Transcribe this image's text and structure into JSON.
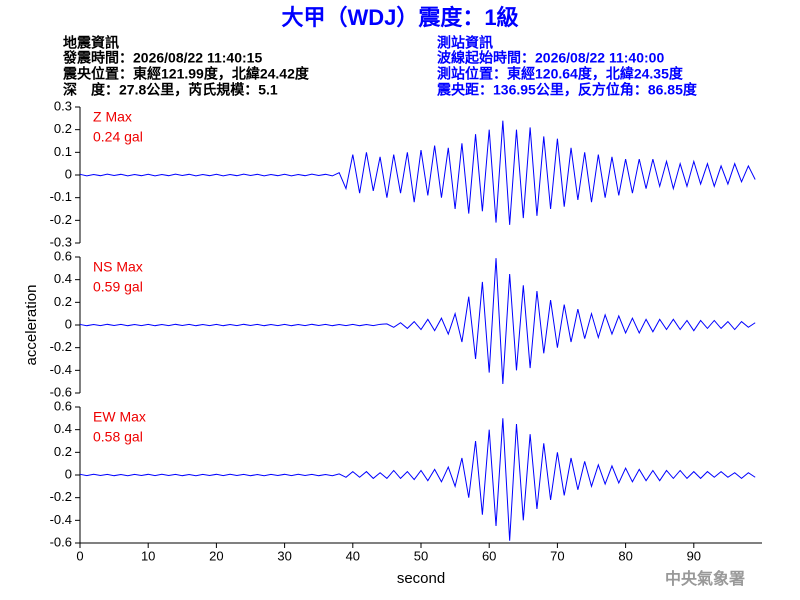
{
  "header": {
    "title": "大甲（WDJ）震度：1級",
    "info_left": [
      "地震資訊",
      "發震時間：2026/08/22 11:40:15",
      "震央位置：東經121.99度，北緯24.42度",
      "深　度：27.8公里，芮氏規模：5.1"
    ],
    "info_right": [
      "測站資訊",
      "波線起始時間：2026/08/22 11:40:00",
      "測站位置：東經120.64度，北緯24.35度",
      "震央距：136.95公里，反方位角：86.85度"
    ]
  },
  "footer": "中央氣象署",
  "chart_data": [
    {
      "type": "line",
      "title": "Z Max",
      "subtitle": "0.24 gal",
      "color": "#0000ff",
      "xlim": [
        0,
        100
      ],
      "ylim": [
        -0.3,
        0.3
      ],
      "yticks": [
        -0.3,
        -0.2,
        -0.1,
        0,
        0.1,
        0.2,
        0.3
      ],
      "x": [
        0,
        1,
        2,
        3,
        4,
        5,
        6,
        7,
        8,
        9,
        10,
        11,
        12,
        13,
        14,
        15,
        16,
        17,
        18,
        19,
        20,
        21,
        22,
        23,
        24,
        25,
        26,
        27,
        28,
        29,
        30,
        31,
        32,
        33,
        34,
        35,
        36,
        37,
        38,
        39,
        40,
        41,
        42,
        43,
        44,
        45,
        46,
        47,
        48,
        49,
        50,
        51,
        52,
        53,
        54,
        55,
        56,
        57,
        58,
        59,
        60,
        61,
        62,
        63,
        64,
        65,
        66,
        67,
        68,
        69,
        70,
        71,
        72,
        73,
        74,
        75,
        76,
        77,
        78,
        79,
        80,
        81,
        82,
        83,
        84,
        85,
        86,
        87,
        88,
        89,
        90,
        91,
        92,
        93,
        94,
        95,
        96,
        97,
        98,
        99
      ],
      "values": [
        0.003,
        -0.004,
        0.002,
        -0.003,
        0.004,
        -0.002,
        0.003,
        -0.004,
        0.002,
        -0.003,
        0.003,
        -0.004,
        0.002,
        -0.003,
        0.004,
        -0.002,
        0.003,
        -0.004,
        0.002,
        -0.003,
        0.003,
        -0.004,
        0.002,
        -0.003,
        0.004,
        -0.002,
        0.003,
        -0.004,
        0.002,
        -0.003,
        0.003,
        -0.004,
        0.002,
        -0.003,
        0.004,
        -0.002,
        0.003,
        -0.004,
        0.01,
        -0.06,
        0.09,
        -0.08,
        0.1,
        -0.07,
        0.08,
        -0.1,
        0.09,
        -0.08,
        0.1,
        -0.12,
        0.11,
        -0.09,
        0.13,
        -0.1,
        0.12,
        -0.15,
        0.14,
        -0.17,
        0.18,
        -0.16,
        0.2,
        -0.21,
        0.24,
        -0.22,
        0.2,
        -0.19,
        0.21,
        -0.18,
        0.17,
        -0.15,
        0.16,
        -0.14,
        0.12,
        -0.11,
        0.1,
        -0.12,
        0.09,
        -0.1,
        0.08,
        -0.09,
        0.07,
        -0.08,
        0.07,
        -0.06,
        0.07,
        -0.05,
        0.06,
        -0.06,
        0.05,
        -0.05,
        0.06,
        -0.04,
        0.05,
        -0.05,
        0.04,
        -0.04,
        0.05,
        -0.03,
        0.04,
        -0.02
      ]
    },
    {
      "type": "line",
      "title": "NS Max",
      "subtitle": "0.59 gal",
      "color": "#0000ff",
      "ylabel": "acceleration",
      "xlim": [
        0,
        100
      ],
      "ylim": [
        -0.6,
        0.6
      ],
      "yticks": [
        -0.6,
        -0.4,
        -0.2,
        0,
        0.2,
        0.4,
        0.6
      ],
      "x": [
        0,
        1,
        2,
        3,
        4,
        5,
        6,
        7,
        8,
        9,
        10,
        11,
        12,
        13,
        14,
        15,
        16,
        17,
        18,
        19,
        20,
        21,
        22,
        23,
        24,
        25,
        26,
        27,
        28,
        29,
        30,
        31,
        32,
        33,
        34,
        35,
        36,
        37,
        38,
        39,
        40,
        41,
        42,
        43,
        44,
        45,
        46,
        47,
        48,
        49,
        50,
        51,
        52,
        53,
        54,
        55,
        56,
        57,
        58,
        59,
        60,
        61,
        62,
        63,
        64,
        65,
        66,
        67,
        68,
        69,
        70,
        71,
        72,
        73,
        74,
        75,
        76,
        77,
        78,
        79,
        80,
        81,
        82,
        83,
        84,
        85,
        86,
        87,
        88,
        89,
        90,
        91,
        92,
        93,
        94,
        95,
        96,
        97,
        98,
        99
      ],
      "values": [
        0.005,
        -0.006,
        0.004,
        -0.005,
        0.006,
        -0.004,
        0.005,
        -0.006,
        0.004,
        -0.005,
        0.005,
        -0.006,
        0.004,
        -0.005,
        0.006,
        -0.004,
        0.005,
        -0.006,
        0.004,
        -0.005,
        0.005,
        -0.006,
        0.004,
        -0.005,
        0.006,
        -0.004,
        0.005,
        -0.006,
        0.004,
        -0.005,
        0.005,
        -0.006,
        0.004,
        -0.005,
        0.006,
        -0.004,
        0.005,
        -0.006,
        0.004,
        -0.005,
        0.005,
        -0.006,
        0.004,
        -0.005,
        0.006,
        0.01,
        -0.02,
        0.02,
        -0.03,
        0.03,
        -0.04,
        0.05,
        -0.05,
        0.06,
        -0.08,
        0.1,
        -0.15,
        0.25,
        -0.3,
        0.38,
        -0.42,
        0.59,
        -0.52,
        0.45,
        -0.4,
        0.35,
        -0.38,
        0.3,
        -0.25,
        0.22,
        -0.2,
        0.18,
        -0.15,
        0.14,
        -0.12,
        0.1,
        -0.11,
        0.09,
        -0.08,
        0.08,
        -0.07,
        0.06,
        -0.07,
        0.05,
        -0.06,
        0.05,
        -0.04,
        0.05,
        -0.04,
        0.04,
        -0.05,
        0.04,
        -0.03,
        0.04,
        -0.03,
        0.03,
        -0.04,
        0.03,
        -0.02,
        0.02
      ]
    },
    {
      "type": "line",
      "title": "EW Max",
      "subtitle": "0.58 gal",
      "color": "#0000ff",
      "xlabel": "second",
      "xlim": [
        0,
        100
      ],
      "xticks": [
        0,
        10,
        20,
        30,
        40,
        50,
        60,
        70,
        80,
        90
      ],
      "ylim": [
        -0.6,
        0.6
      ],
      "yticks": [
        -0.6,
        -0.4,
        -0.2,
        0,
        0.2,
        0.4,
        0.6
      ],
      "x": [
        0,
        1,
        2,
        3,
        4,
        5,
        6,
        7,
        8,
        9,
        10,
        11,
        12,
        13,
        14,
        15,
        16,
        17,
        18,
        19,
        20,
        21,
        22,
        23,
        24,
        25,
        26,
        27,
        28,
        29,
        30,
        31,
        32,
        33,
        34,
        35,
        36,
        37,
        38,
        39,
        40,
        41,
        42,
        43,
        44,
        45,
        46,
        47,
        48,
        49,
        50,
        51,
        52,
        53,
        54,
        55,
        56,
        57,
        58,
        59,
        60,
        61,
        62,
        63,
        64,
        65,
        66,
        67,
        68,
        69,
        70,
        71,
        72,
        73,
        74,
        75,
        76,
        77,
        78,
        79,
        80,
        81,
        82,
        83,
        84,
        85,
        86,
        87,
        88,
        89,
        90,
        91,
        92,
        93,
        94,
        95,
        96,
        97,
        98,
        99
      ],
      "values": [
        0.006,
        -0.005,
        0.007,
        -0.004,
        0.005,
        -0.006,
        0.004,
        -0.007,
        0.005,
        -0.004,
        0.006,
        -0.005,
        0.007,
        -0.004,
        0.005,
        -0.006,
        0.004,
        -0.007,
        0.005,
        -0.004,
        0.006,
        -0.005,
        0.007,
        -0.004,
        0.005,
        -0.006,
        0.004,
        -0.007,
        0.005,
        -0.004,
        0.006,
        -0.005,
        0.007,
        -0.004,
        0.005,
        -0.006,
        0.004,
        -0.007,
        0.01,
        -0.02,
        0.03,
        -0.02,
        0.03,
        -0.03,
        0.02,
        -0.03,
        0.04,
        -0.03,
        0.03,
        -0.04,
        0.04,
        -0.05,
        0.05,
        -0.06,
        0.07,
        -0.1,
        0.15,
        -0.2,
        0.3,
        -0.35,
        0.4,
        -0.45,
        0.5,
        -0.58,
        0.45,
        -0.4,
        0.36,
        -0.3,
        0.28,
        -0.22,
        0.2,
        -0.18,
        0.15,
        -0.13,
        0.12,
        -0.1,
        0.09,
        -0.08,
        0.08,
        -0.07,
        0.06,
        -0.06,
        0.05,
        -0.05,
        0.04,
        -0.05,
        0.04,
        -0.03,
        0.04,
        -0.03,
        0.03,
        -0.03,
        0.03,
        -0.02,
        0.03,
        -0.02,
        0.02,
        -0.03,
        0.02,
        -0.02
      ]
    }
  ]
}
